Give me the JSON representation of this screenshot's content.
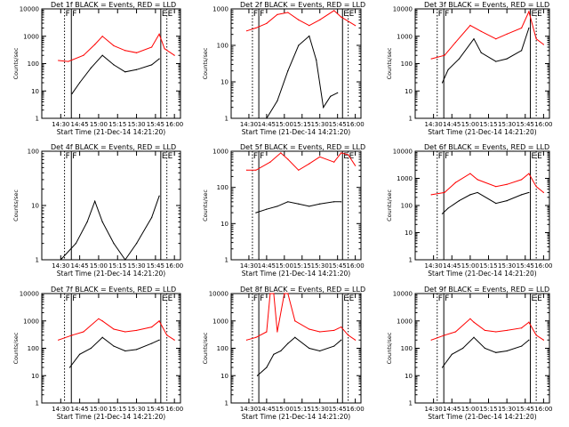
{
  "colors": {
    "events": "#000000",
    "lld": "#ff0000",
    "background": "#ffffff",
    "axes": "#000000"
  },
  "common": {
    "ylabel": "Counts/sec",
    "xlabel": "Start Time (21-Dec-14 14:21:20)",
    "xticks": [
      "14:30",
      "14:45",
      "15:00",
      "15:15",
      "15:30",
      "15:45",
      "16:00"
    ],
    "markers": [
      "F",
      "F",
      "E",
      "E"
    ]
  },
  "chart_data": [
    {
      "type": "line",
      "title": "Det 1f BLACK = Events, RED = LLD",
      "ylog": true,
      "ylim": [
        1,
        10000
      ],
      "yticks": [
        "1",
        "10",
        "100",
        "1000",
        "10000"
      ],
      "series": [
        {
          "name": "Events",
          "color": "#000000",
          "x": [
            14.65,
            14.75,
            14.9,
            15.05,
            15.2,
            15.35,
            15.5,
            15.7,
            15.8
          ],
          "y": [
            8,
            20,
            70,
            200,
            90,
            50,
            60,
            90,
            150
          ]
        },
        {
          "name": "LLD",
          "color": "#ff0000",
          "x": [
            14.47,
            14.6,
            14.8,
            14.95,
            15.05,
            15.2,
            15.35,
            15.5,
            15.7,
            15.8,
            15.87,
            16.0
          ],
          "y": [
            130,
            120,
            200,
            500,
            1000,
            450,
            300,
            250,
            400,
            1200,
            350,
            200
          ]
        }
      ]
    },
    {
      "type": "line",
      "title": "Det 2f BLACK = Events, RED = LLD",
      "ylog": true,
      "ylim": [
        1,
        1000
      ],
      "yticks": [
        "1",
        "10",
        "100",
        "1000"
      ],
      "series": [
        {
          "name": "Events",
          "color": "#000000",
          "x": [
            14.75,
            14.9,
            15.05,
            15.2,
            15.35,
            15.45,
            15.55,
            15.65,
            15.75
          ],
          "y": [
            1,
            3,
            20,
            100,
            180,
            40,
            2,
            4,
            5
          ]
        },
        {
          "name": "LLD",
          "color": "#ff0000",
          "x": [
            14.47,
            14.6,
            14.75,
            14.9,
            15.05,
            15.2,
            15.35,
            15.5,
            15.7,
            15.8,
            16.0
          ],
          "y": [
            250,
            300,
            400,
            700,
            800,
            500,
            350,
            500,
            900,
            600,
            350
          ]
        }
      ]
    },
    {
      "type": "line",
      "title": "Det 3f BLACK = Events, RED = LLD",
      "ylog": true,
      "ylim": [
        1,
        10000
      ],
      "yticks": [
        "1",
        "10",
        "100",
        "1000",
        "10000"
      ],
      "series": [
        {
          "name": "Events",
          "color": "#000000",
          "x": [
            14.62,
            14.7,
            14.85,
            15.05,
            15.15,
            15.35,
            15.5,
            15.7,
            15.8
          ],
          "y": [
            20,
            60,
            150,
            800,
            250,
            120,
            150,
            300,
            2000
          ]
        },
        {
          "name": "LLD",
          "color": "#ff0000",
          "x": [
            14.47,
            14.65,
            14.8,
            15.0,
            15.15,
            15.35,
            15.5,
            15.7,
            15.8,
            15.9,
            16.0
          ],
          "y": [
            150,
            200,
            600,
            2500,
            1500,
            800,
            1200,
            2000,
            8000,
            800,
            500
          ]
        }
      ]
    },
    {
      "type": "line",
      "title": "Det 4f BLACK = Events, RED = LLD",
      "ylog": true,
      "ylim": [
        1,
        100
      ],
      "yticks": [
        "1",
        "10",
        "100"
      ],
      "series": [
        {
          "name": "Events",
          "color": "#000000",
          "x": [
            14.5,
            14.7,
            14.85,
            14.95,
            15.05,
            15.2,
            15.35,
            15.5,
            15.7,
            15.8
          ],
          "y": [
            1,
            2,
            5,
            12,
            5,
            2,
            1,
            2,
            6,
            15
          ]
        }
      ]
    },
    {
      "type": "line",
      "title": "Det 5f BLACK = Events, RED = LLD",
      "ylog": true,
      "ylim": [
        1,
        1000
      ],
      "yticks": [
        "1",
        "10",
        "100",
        "1000"
      ],
      "series": [
        {
          "name": "Events",
          "color": "#000000",
          "x": [
            14.6,
            14.75,
            14.9,
            15.05,
            15.2,
            15.35,
            15.5,
            15.7,
            15.8
          ],
          "y": [
            20,
            25,
            30,
            40,
            35,
            30,
            35,
            40,
            40
          ]
        },
        {
          "name": "LLD",
          "color": "#ff0000",
          "x": [
            14.47,
            14.6,
            14.8,
            14.95,
            15.05,
            15.2,
            15.35,
            15.5,
            15.7,
            15.8,
            15.9,
            16.0
          ],
          "y": [
            300,
            300,
            500,
            900,
            600,
            300,
            450,
            700,
            500,
            900,
            800,
            400
          ]
        }
      ]
    },
    {
      "type": "line",
      "title": "Det 6f BLACK = Events, RED = LLD",
      "ylog": true,
      "ylim": [
        1,
        10000
      ],
      "yticks": [
        "1",
        "10",
        "100",
        "1000",
        "10000"
      ],
      "series": [
        {
          "name": "Events",
          "color": "#000000",
          "x": [
            14.62,
            14.7,
            14.85,
            15.0,
            15.1,
            15.35,
            15.5,
            15.7,
            15.8
          ],
          "y": [
            50,
            80,
            150,
            250,
            300,
            120,
            150,
            250,
            300
          ]
        },
        {
          "name": "LLD",
          "color": "#ff0000",
          "x": [
            14.47,
            14.65,
            14.8,
            15.0,
            15.1,
            15.35,
            15.5,
            15.7,
            15.8,
            15.9,
            16.0
          ],
          "y": [
            250,
            300,
            700,
            1500,
            900,
            500,
            600,
            900,
            1500,
            500,
            300
          ]
        }
      ]
    },
    {
      "type": "line",
      "title": "Det 7f BLACK = Events, RED = LLD",
      "ylog": true,
      "ylim": [
        1,
        10000
      ],
      "yticks": [
        "1",
        "10",
        "100",
        "1000",
        "10000"
      ],
      "series": [
        {
          "name": "Events",
          "color": "#000000",
          "x": [
            14.62,
            14.75,
            14.9,
            15.05,
            15.2,
            15.35,
            15.5,
            15.7,
            15.8
          ],
          "y": [
            20,
            60,
            100,
            250,
            120,
            80,
            90,
            150,
            200
          ]
        },
        {
          "name": "LLD",
          "color": "#ff0000",
          "x": [
            14.47,
            14.65,
            14.8,
            15.0,
            15.05,
            15.2,
            15.35,
            15.5,
            15.7,
            15.8,
            15.9,
            16.0
          ],
          "y": [
            200,
            300,
            400,
            1200,
            1000,
            500,
            400,
            450,
            600,
            1000,
            300,
            200
          ]
        }
      ]
    },
    {
      "type": "line",
      "title": "Det 8f BLACK = Events, RED = LLD",
      "ylog": true,
      "ylim": [
        1,
        10000
      ],
      "yticks": [
        "1",
        "10",
        "100",
        "1000",
        "10000"
      ],
      "series": [
        {
          "name": "Events",
          "color": "#000000",
          "x": [
            14.62,
            14.75,
            14.85,
            14.95,
            15.05,
            15.15,
            15.35,
            15.5,
            15.7,
            15.8
          ],
          "y": [
            10,
            20,
            60,
            80,
            150,
            250,
            100,
            80,
            120,
            200
          ]
        },
        {
          "name": "LLD",
          "color": "#ff0000",
          "x": [
            14.47,
            14.6,
            14.75,
            14.8,
            14.85,
            14.9,
            15.0,
            15.05,
            15.15,
            15.35,
            15.5,
            15.7,
            15.8,
            15.9,
            16.0
          ],
          "y": [
            200,
            250,
            400,
            10000,
            10000,
            400,
            10000,
            10000,
            1000,
            500,
            400,
            450,
            600,
            300,
            200
          ]
        }
      ]
    },
    {
      "type": "line",
      "title": "Det 9f BLACK = Events, RED = LLD",
      "ylog": true,
      "ylim": [
        1,
        10000
      ],
      "yticks": [
        "1",
        "10",
        "100",
        "1000",
        "10000"
      ],
      "series": [
        {
          "name": "Events",
          "color": "#000000",
          "x": [
            14.62,
            14.75,
            14.9,
            15.05,
            15.2,
            15.35,
            15.5,
            15.7,
            15.8
          ],
          "y": [
            20,
            60,
            100,
            250,
            100,
            70,
            80,
            120,
            200
          ]
        },
        {
          "name": "LLD",
          "color": "#ff0000",
          "x": [
            14.47,
            14.65,
            14.8,
            15.0,
            15.05,
            15.2,
            15.35,
            15.5,
            15.7,
            15.8,
            15.9,
            16.0
          ],
          "y": [
            200,
            300,
            400,
            1200,
            900,
            450,
            400,
            450,
            550,
            900,
            300,
            200
          ]
        }
      ]
    }
  ]
}
